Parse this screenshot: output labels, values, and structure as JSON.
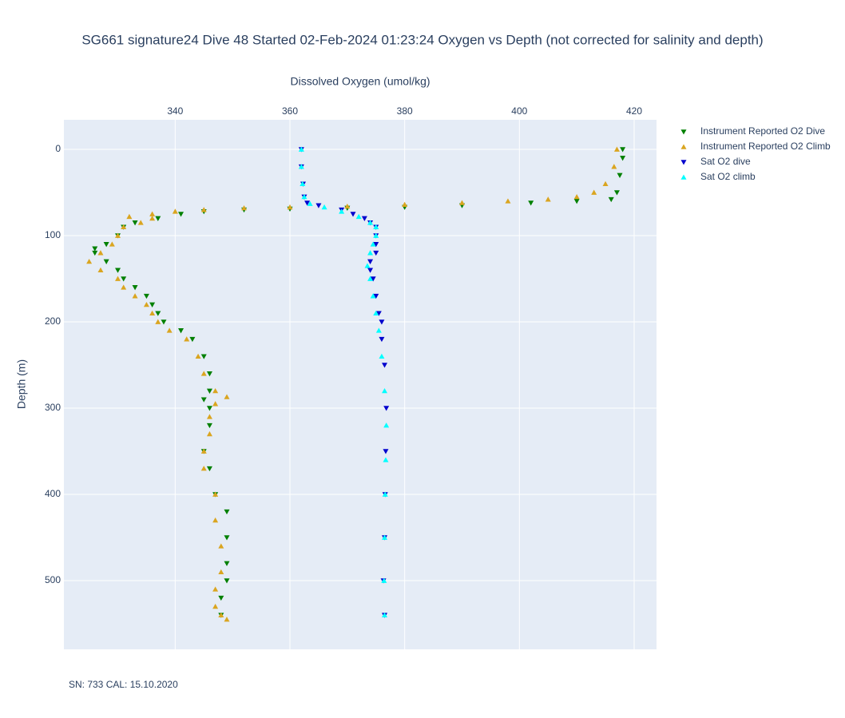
{
  "chart_data": {
    "type": "scatter",
    "title": "SG661 signature24 Dive 48 Started 02-Feb-2024 01:23:24  Oxygen vs Depth (not corrected for salinity and depth)",
    "x_label": "Dissolved Oxygen (umol/kg)",
    "y_label": "Depth (m)",
    "annotation": "SN: 733  CAL: 15.10.2020",
    "xlim": [
      320.6,
      423.9
    ],
    "ylim": [
      -34.3,
      579.6
    ],
    "y_reversed": true,
    "xticks": [
      340,
      360,
      380,
      400,
      420
    ],
    "yticks": [
      0,
      100,
      200,
      300,
      400,
      500
    ],
    "grid": true,
    "legend": "outside-top-right",
    "series": [
      {
        "name": "Instrument Reported O2 Dive",
        "color": "#008000",
        "marker": "triangle-down",
        "x": [
          418,
          418,
          417.5,
          417,
          416,
          410,
          402,
          390,
          380,
          370,
          360,
          352,
          345,
          341,
          337,
          333,
          331,
          330,
          328,
          326,
          326,
          328,
          330,
          331,
          333,
          335,
          336,
          337,
          338,
          341,
          343,
          345,
          346,
          346,
          345,
          346,
          346,
          345,
          346,
          347,
          349,
          349,
          349,
          349,
          348,
          348
        ],
        "y": [
          0,
          10,
          30,
          50,
          58,
          60,
          62,
          65,
          67,
          68,
          69,
          70,
          72,
          75,
          80,
          85,
          90,
          100,
          110,
          115,
          120,
          130,
          140,
          150,
          160,
          170,
          180,
          190,
          200,
          210,
          220,
          240,
          260,
          280,
          290,
          300,
          320,
          350,
          370,
          400,
          420,
          450,
          480,
          500,
          520,
          540
        ]
      },
      {
        "name": "Instrument Reported O2 Climb",
        "color": "#daa520",
        "marker": "triangle-up",
        "x": [
          417,
          416.5,
          415,
          413,
          410,
          405,
          398,
          390,
          380,
          370,
          360,
          352,
          345,
          340,
          336,
          332,
          336,
          334,
          331,
          330,
          329,
          327,
          325,
          327,
          330,
          331,
          333,
          335,
          336,
          337,
          339,
          342,
          344,
          345,
          347,
          349,
          347,
          346,
          346,
          345,
          345,
          347,
          347,
          348,
          348,
          347,
          347,
          348,
          349
        ],
        "y": [
          0,
          20,
          40,
          50,
          55,
          58,
          60,
          62,
          64,
          66,
          67,
          68,
          70,
          72,
          75,
          78,
          80,
          85,
          90,
          100,
          110,
          120,
          130,
          140,
          150,
          160,
          170,
          180,
          190,
          200,
          210,
          220,
          240,
          260,
          280,
          287,
          295,
          310,
          330,
          350,
          370,
          400,
          430,
          460,
          490,
          510,
          530,
          540,
          545
        ]
      },
      {
        "name": "Sat O2 dive",
        "color": "#0000cd",
        "marker": "triangle-down",
        "x": [
          362,
          362,
          362.3,
          362.5,
          363,
          365,
          369,
          371,
          373,
          374,
          375,
          375,
          375,
          375,
          374,
          374,
          374.5,
          375,
          375.5,
          376,
          376,
          376.5,
          376.8,
          376.7,
          376.6,
          376.5,
          376.3,
          376.5
        ],
        "y": [
          0,
          20,
          40,
          55,
          62,
          65,
          70,
          75,
          80,
          85,
          90,
          100,
          110,
          120,
          130,
          140,
          150,
          170,
          190,
          200,
          220,
          250,
          300,
          350,
          400,
          450,
          500,
          540
        ]
      },
      {
        "name": "Sat O2 climb",
        "color": "#00ffff",
        "marker": "triangle-up",
        "x": [
          362,
          362,
          362.2,
          362.5,
          363.5,
          366,
          369,
          372,
          374,
          375,
          375,
          374.5,
          374,
          373.5,
          374,
          374.5,
          375,
          375.5,
          376,
          376.5,
          376.8,
          376.7,
          376.6,
          376.5,
          376.4,
          376.5
        ],
        "y": [
          0,
          20,
          40,
          55,
          63,
          67,
          72,
          78,
          85,
          90,
          100,
          110,
          120,
          135,
          150,
          170,
          190,
          210,
          240,
          280,
          320,
          360,
          400,
          450,
          500,
          540
        ]
      }
    ]
  }
}
